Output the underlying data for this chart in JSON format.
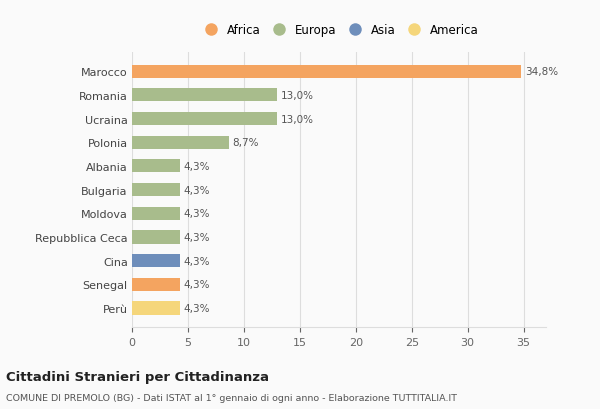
{
  "countries": [
    "Marocco",
    "Romania",
    "Ucraina",
    "Polonia",
    "Albania",
    "Bulgaria",
    "Moldova",
    "Repubblica Ceca",
    "Cina",
    "Senegal",
    "Perù"
  ],
  "values": [
    34.8,
    13.0,
    13.0,
    8.7,
    4.3,
    4.3,
    4.3,
    4.3,
    4.3,
    4.3,
    4.3
  ],
  "labels": [
    "34,8%",
    "13,0%",
    "13,0%",
    "8,7%",
    "4,3%",
    "4,3%",
    "4,3%",
    "4,3%",
    "4,3%",
    "4,3%",
    "4,3%"
  ],
  "colors": [
    "#F4A460",
    "#A8BC8C",
    "#A8BC8C",
    "#A8BC8C",
    "#A8BC8C",
    "#A8BC8C",
    "#A8BC8C",
    "#A8BC8C",
    "#6E8EBB",
    "#F4A460",
    "#F5D67B"
  ],
  "legend_labels": [
    "Africa",
    "Europa",
    "Asia",
    "America"
  ],
  "legend_colors": [
    "#F4A460",
    "#A8BC8C",
    "#6E8EBB",
    "#F5D67B"
  ],
  "title": "Cittadini Stranieri per Cittadinanza",
  "subtitle": "COMUNE DI PREMOLO (BG) - Dati ISTAT al 1° gennaio di ogni anno - Elaborazione TUTTITALIA.IT",
  "xlim": [
    0,
    37
  ],
  "xticks": [
    0,
    5,
    10,
    15,
    20,
    25,
    30,
    35
  ],
  "bg_color": "#FAFAFA",
  "bar_height": 0.55,
  "grid_color": "#DDDDDD"
}
